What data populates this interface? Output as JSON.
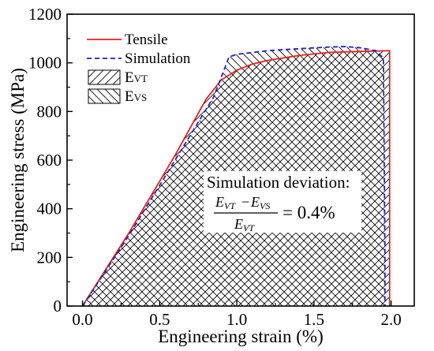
{
  "chart_data": {
    "type": "line",
    "title": "",
    "xlabel": "Engineering strain (%)",
    "ylabel": "Engineering stress (MPa)",
    "xlim": [
      -0.1,
      2.15
    ],
    "ylim": [
      0,
      1200
    ],
    "xticks": [
      0.0,
      0.5,
      1.0,
      1.5,
      2.0
    ],
    "yticks": [
      0,
      200,
      400,
      600,
      800,
      1000,
      1200
    ],
    "xtick_labels": [
      "0.0",
      "0.5",
      "1.0",
      "1.5",
      "2.0"
    ],
    "ytick_labels": [
      "0",
      "200",
      "400",
      "600",
      "800",
      "1000",
      "1200"
    ],
    "grid": false,
    "legend_position": "top-left",
    "series": [
      {
        "name": "Tensile",
        "style": "solid",
        "color": "#e8211c",
        "x": [
          0.0,
          0.3,
          0.6,
          0.8,
          0.9,
          1.0,
          1.1,
          1.2,
          1.4,
          1.6,
          1.8,
          1.99,
          1.99
        ],
        "y": [
          0,
          300,
          620,
          850,
          930,
          970,
          995,
          1010,
          1030,
          1043,
          1047,
          1050,
          0
        ]
      },
      {
        "name": "Simulation",
        "style": "dashed",
        "color": "#1f1fd0",
        "x": [
          0.0,
          0.3,
          0.6,
          0.85,
          0.95,
          1.0,
          1.2,
          1.4,
          1.6,
          1.7,
          1.8,
          1.9,
          1.95,
          1.96,
          1.96
        ],
        "y": [
          0,
          290,
          600,
          860,
          1025,
          1035,
          1050,
          1058,
          1065,
          1067,
          1062,
          1050,
          1020,
          200,
          0
        ]
      }
    ],
    "legend": [
      {
        "label": "Tensile",
        "type": "line",
        "style": "solid",
        "color": "#e8211c"
      },
      {
        "label": "Simulation",
        "type": "line",
        "style": "dashed",
        "color": "#1f1fd0"
      },
      {
        "label_main": "E",
        "label_sub": "VT",
        "type": "hatch",
        "pattern": "forward-diagonal"
      },
      {
        "label_main": "E",
        "label_sub": "VS",
        "type": "hatch",
        "pattern": "backward-diagonal"
      }
    ],
    "annotation": {
      "title": "Simulation deviation:",
      "numerator_left": "E",
      "numerator_left_sub": "VT",
      "numerator_minus": "−",
      "numerator_right": "E",
      "numerator_right_sub": "VS",
      "denominator": "E",
      "denominator_sub": "VT",
      "equals": "= 0.4%"
    }
  }
}
